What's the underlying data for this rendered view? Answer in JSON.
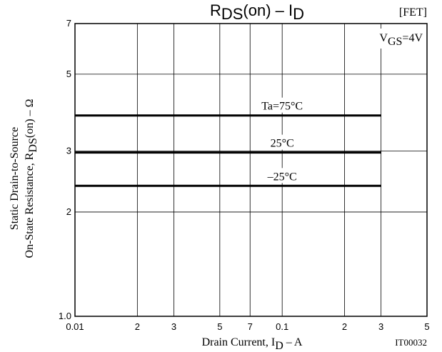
{
  "chart_data": {
    "type": "line",
    "title_main": "R",
    "title_sub": "DS",
    "title_rest": "(on)  –  I",
    "title_sub2": "D",
    "tag": "[FET]",
    "condition_main": "V",
    "condition_sub": "GS",
    "condition_rest": "=4V",
    "xlabel_main": "Drain Current, I",
    "xlabel_sub": "D",
    "xlabel_rest": "  –  A",
    "ylabel_line1": "Static Drain-to-Source",
    "ylabel_line2_main": "On-State Resistance, R",
    "ylabel_line2_sub": "DS",
    "ylabel_line2_rest": "(on)  –  Ω",
    "figure_id": "IT00032",
    "xscale": "log",
    "yscale": "log",
    "xlim": [
      0.01,
      0.5
    ],
    "ylim": [
      1.0,
      7
    ],
    "grid": true,
    "x_ticks": [
      {
        "value": 0.01,
        "label": "0.01"
      },
      {
        "value": 0.02,
        "label": "2"
      },
      {
        "value": 0.03,
        "label": "3"
      },
      {
        "value": 0.05,
        "label": "5"
      },
      {
        "value": 0.07,
        "label": "7"
      },
      {
        "value": 0.1,
        "label": "0.1"
      },
      {
        "value": 0.2,
        "label": "2"
      },
      {
        "value": 0.3,
        "label": "3"
      },
      {
        "value": 0.5,
        "label": "5"
      }
    ],
    "y_ticks": [
      {
        "value": 1.0,
        "label": "1.0"
      },
      {
        "value": 2,
        "label": "2"
      },
      {
        "value": 3,
        "label": "3"
      },
      {
        "value": 5,
        "label": "5"
      },
      {
        "value": 7,
        "label": "7"
      }
    ],
    "series": [
      {
        "name": "Ta=75°C",
        "x": [
          0.01,
          0.3
        ],
        "y": [
          3.8,
          3.8
        ]
      },
      {
        "name": "25°C",
        "x": [
          0.01,
          0.3
        ],
        "y": [
          2.97,
          2.97
        ]
      },
      {
        "name": "–25°C",
        "x": [
          0.01,
          0.3
        ],
        "y": [
          2.38,
          2.38
        ]
      }
    ]
  }
}
